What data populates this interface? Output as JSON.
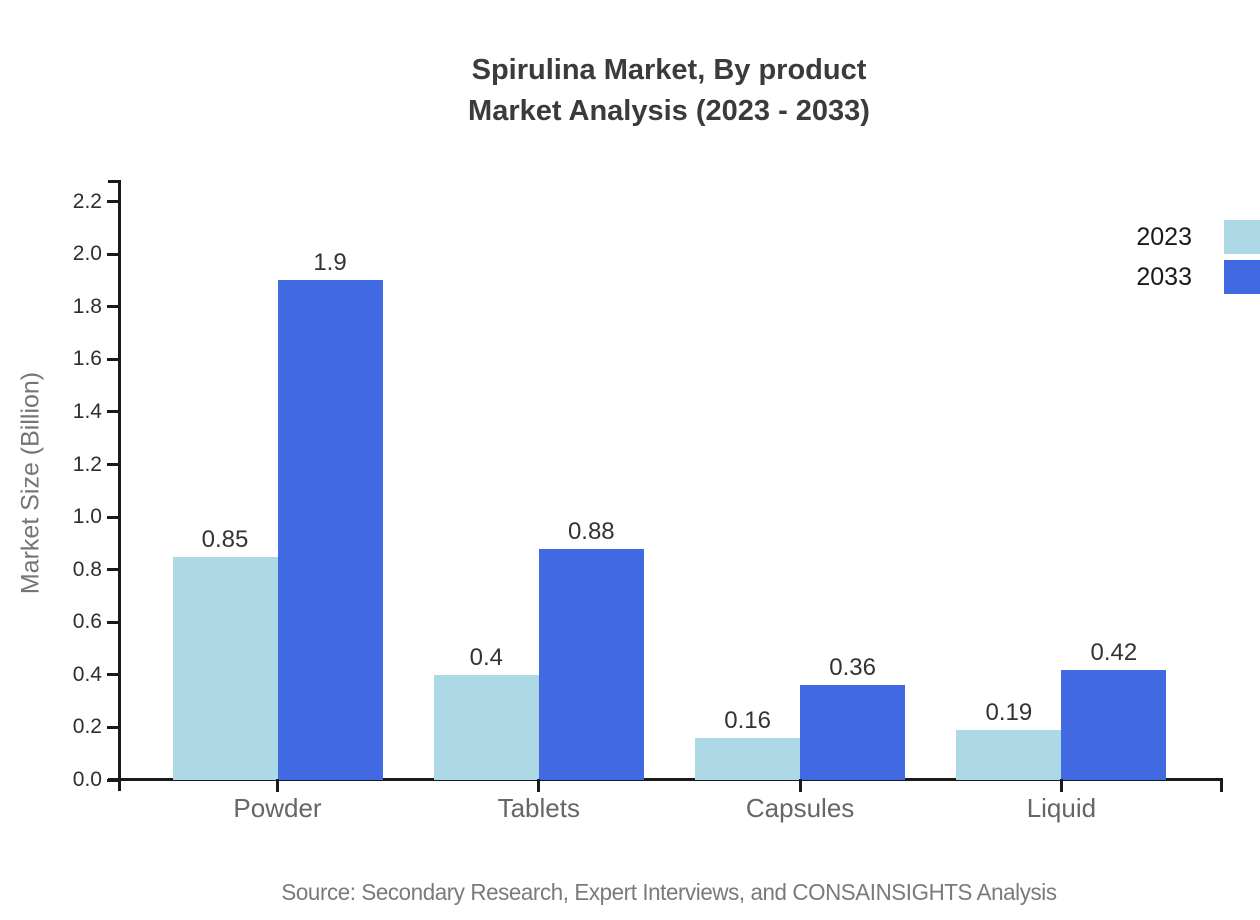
{
  "title": {
    "line1": "Spirulina Market, By product",
    "line2": "Market Analysis (2023 - 2033)"
  },
  "legend": {
    "items": [
      {
        "label": "2023",
        "color": "#ADD8E6"
      },
      {
        "label": "2033",
        "color": "#4169E1"
      }
    ],
    "position": "upper-right-outside"
  },
  "source_note": "Source: Secondary Research, Expert Interviews, and CONSAINSIGHTS Analysis",
  "chart_data": {
    "type": "bar",
    "title": "Spirulina Market, By product Market Analysis (2023 - 2033)",
    "categories": [
      "Powder",
      "Tablets",
      "Capsules",
      "Liquid"
    ],
    "series": [
      {
        "name": "2023",
        "color": "#ADD8E6",
        "values": [
          0.85,
          0.4,
          0.16,
          0.19
        ]
      },
      {
        "name": "2033",
        "color": "#4169E1",
        "values": [
          1.9,
          0.88,
          0.36,
          0.42
        ]
      }
    ],
    "xlabel": "",
    "ylabel": "Market Size (Billion)",
    "ylim": [
      0,
      2.28
    ],
    "yticks": [
      0.0,
      0.2,
      0.4,
      0.6,
      0.8,
      1.0,
      1.2,
      1.4,
      1.6,
      1.8,
      2.0,
      2.2
    ],
    "grid": false,
    "bar_value_labels": true
  },
  "colors": {
    "background": "#ffffff",
    "axis": "#1a1a1a",
    "title_text": "#3b3b3b",
    "tick_label": "#2e2e2e",
    "value_label": "#333333",
    "category_label": "#666666",
    "axis_label": "#757575",
    "legend_text": "#1a1a1a",
    "source_text": "#7a7a7a"
  }
}
